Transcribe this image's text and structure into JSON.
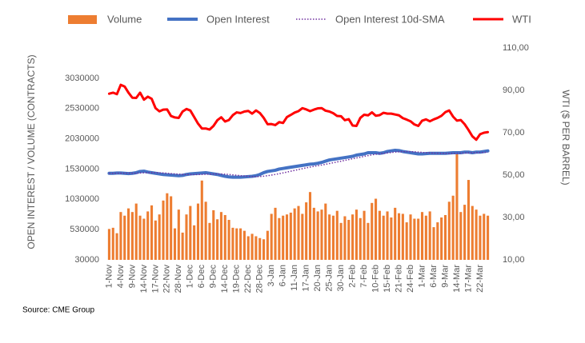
{
  "chart_data": {
    "type": "combo",
    "categories": [
      "1-Nov",
      null,
      null,
      "4-Nov",
      null,
      null,
      "9-Nov",
      null,
      null,
      "14-Nov",
      null,
      null,
      "17-Nov",
      null,
      null,
      "22-Nov",
      null,
      null,
      "28-Nov",
      null,
      null,
      "1-Dec",
      null,
      null,
      "6-Dec",
      null,
      null,
      "9-Dec",
      null,
      null,
      "14-Dec",
      null,
      null,
      "19-Dec",
      null,
      null,
      "22-Dec",
      null,
      null,
      "28-Dec",
      null,
      null,
      "3-Jan",
      null,
      null,
      "6-Jan",
      null,
      null,
      "11-Jan",
      null,
      null,
      "17-Jan",
      null,
      null,
      "20-Jan",
      null,
      null,
      "25-Jan",
      null,
      null,
      "30-Jan",
      null,
      null,
      "2-Feb",
      null,
      null,
      "7-Feb",
      null,
      null,
      "10-Feb",
      null,
      null,
      "15-Feb",
      null,
      null,
      "21-Feb",
      null,
      null,
      "24-Feb",
      null,
      null,
      "1-Mar",
      null,
      null,
      "6-Mar",
      null,
      null,
      "9-Mar",
      null,
      null,
      "14-Mar",
      null,
      null,
      "17-Mar",
      null,
      null,
      "22-Mar",
      null,
      null
    ],
    "series": [
      {
        "name": "Volume",
        "type": "bar",
        "color": "#ED7D31",
        "axis": "y",
        "values": [
          540000,
          560000,
          470000,
          820000,
          760000,
          880000,
          820000,
          960000,
          760000,
          710000,
          830000,
          930000,
          680000,
          780000,
          1010000,
          1130000,
          1080000,
          550000,
          860000,
          480000,
          780000,
          920000,
          600000,
          960000,
          1340000,
          990000,
          640000,
          850000,
          700000,
          820000,
          770000,
          690000,
          560000,
          550000,
          550000,
          510000,
          420000,
          460000,
          420000,
          390000,
          370000,
          510000,
          790000,
          890000,
          720000,
          760000,
          780000,
          810000,
          880000,
          920000,
          790000,
          980000,
          1150000,
          890000,
          830000,
          860000,
          960000,
          780000,
          760000,
          840000,
          640000,
          750000,
          690000,
          780000,
          860000,
          720000,
          840000,
          640000,
          970000,
          1040000,
          840000,
          760000,
          830000,
          730000,
          890000,
          800000,
          790000,
          650000,
          780000,
          710000,
          710000,
          820000,
          760000,
          830000,
          570000,
          650000,
          730000,
          770000,
          990000,
          1090000,
          1780000,
          820000,
          940000,
          1350000,
          920000,
          860000,
          760000,
          790000,
          760000
        ]
      },
      {
        "name": "Open Interest",
        "type": "line",
        "color": "#4472C4",
        "width": 4,
        "axis": "y",
        "values": [
          1460000,
          1460000,
          1465000,
          1465000,
          1460000,
          1455000,
          1460000,
          1470000,
          1490000,
          1495000,
          1480000,
          1470000,
          1460000,
          1450000,
          1440000,
          1435000,
          1430000,
          1425000,
          1420000,
          1425000,
          1440000,
          1450000,
          1455000,
          1460000,
          1465000,
          1470000,
          1460000,
          1450000,
          1440000,
          1425000,
          1410000,
          1400000,
          1395000,
          1395000,
          1395000,
          1400000,
          1405000,
          1410000,
          1420000,
          1440000,
          1470000,
          1490000,
          1500000,
          1510000,
          1530000,
          1540000,
          1550000,
          1560000,
          1570000,
          1580000,
          1590000,
          1600000,
          1610000,
          1615000,
          1625000,
          1640000,
          1660000,
          1680000,
          1690000,
          1700000,
          1710000,
          1720000,
          1730000,
          1740000,
          1760000,
          1770000,
          1780000,
          1800000,
          1800000,
          1800000,
          1790000,
          1800000,
          1820000,
          1830000,
          1840000,
          1835000,
          1820000,
          1810000,
          1800000,
          1790000,
          1780000,
          1780000,
          1785000,
          1790000,
          1790000,
          1790000,
          1790000,
          1790000,
          1795000,
          1800000,
          1800000,
          1800000,
          1810000,
          1810000,
          1800000,
          1810000,
          1810000,
          1820000,
          1830000
        ]
      },
      {
        "name": "Open Interest 10d-SMA",
        "type": "line",
        "color": "#7030A0",
        "width": 1.5,
        "line_style": "dotted",
        "axis": "y",
        "values": [
          1460000,
          1460000,
          1461000,
          1462000,
          1462000,
          1461000,
          1461000,
          1462000,
          1465000,
          1468000,
          1470000,
          1471000,
          1470000,
          1468000,
          1465000,
          1460000,
          1455000,
          1450000,
          1446000,
          1442000,
          1440000,
          1439000,
          1438000,
          1439000,
          1441000,
          1444000,
          1446000,
          1448000,
          1449000,
          1448000,
          1445000,
          1440000,
          1434000,
          1428000,
          1421000,
          1415000,
          1410000,
          1406000,
          1404000,
          1406000,
          1412000,
          1420000,
          1430000,
          1441000,
          1453000,
          1466000,
          1480000,
          1494000,
          1508000,
          1522000,
          1536000,
          1550000,
          1562000,
          1574000,
          1585000,
          1596000,
          1608000,
          1621000,
          1634000,
          1647000,
          1660000,
          1673000,
          1686000,
          1700000,
          1713000,
          1726000,
          1740000,
          1752000,
          1763000,
          1774000,
          1782000,
          1789000,
          1796000,
          1803000,
          1810000,
          1815000,
          1818000,
          1819000,
          1818000,
          1815000,
          1810000,
          1805000,
          1800000,
          1796000,
          1793000,
          1791000,
          1790000,
          1789000,
          1789000,
          1790000,
          1791000,
          1793000,
          1795000,
          1797000,
          1799000,
          1801000,
          1803000,
          1805000,
          1808000
        ]
      },
      {
        "name": "WTI",
        "type": "line",
        "color": "#FF0000",
        "width": 3,
        "axis": "y2",
        "values": [
          88.4,
          88.9,
          88.2,
          92.6,
          91.8,
          88.9,
          86.5,
          86.4,
          88.9,
          85.6,
          87.0,
          86.0,
          81.6,
          80.1,
          80.9,
          81.0,
          77.9,
          77.2,
          77.0,
          80.0,
          81.2,
          80.5,
          77.4,
          74.3,
          72.0,
          72.0,
          71.5,
          73.2,
          75.9,
          77.3,
          75.3,
          76.0,
          78.3,
          79.6,
          79.3,
          80.0,
          80.3,
          79.0,
          80.5,
          79.3,
          77.0,
          74.0,
          74.1,
          73.6,
          75.0,
          74.6,
          77.4,
          78.4,
          79.5,
          80.2,
          81.6,
          81.0,
          80.2,
          80.9,
          81.5,
          81.6,
          80.4,
          80.0,
          79.2,
          77.9,
          77.8,
          75.9,
          76.4,
          73.4,
          73.2,
          77.0,
          78.5,
          78.2,
          79.6,
          78.0,
          78.3,
          79.4,
          79.0,
          79.0,
          78.6,
          78.2,
          76.9,
          76.2,
          75.4,
          73.9,
          73.2,
          75.7,
          76.3,
          75.4,
          76.3,
          77.0,
          78.0,
          79.7,
          80.5,
          77.6,
          75.7,
          76.0,
          74.0,
          71.3,
          68.3,
          66.7,
          69.3,
          70.0,
          70.3
        ]
      }
    ],
    "ylim": [
      30000,
      3530000
    ],
    "yticks": [
      30000,
      530000,
      1030000,
      1530000,
      2030000,
      2530000,
      3030000
    ],
    "y2lim": [
      10,
      110
    ],
    "y2ticks": [
      {
        "value": 10,
        "label": "10,00"
      },
      {
        "value": 30,
        "label": "30,00"
      },
      {
        "value": 50,
        "label": "50,00"
      },
      {
        "value": 70,
        "label": "70,00"
      },
      {
        "value": 90,
        "label": "90,00"
      },
      {
        "value": 110,
        "label": "110,00"
      }
    ],
    "ylabel": "OPEN INTEREST / VOLUME (CONTRACTS)",
    "y2label": "WTI ($ PER BARREL)",
    "grid": false,
    "legend": "top",
    "source": "Source: CME Group"
  }
}
